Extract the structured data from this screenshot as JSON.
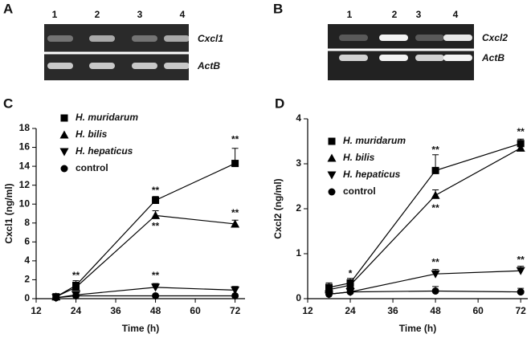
{
  "gels": [
    {
      "panel": "A",
      "lanes": [
        "1",
        "2",
        "3",
        "4"
      ],
      "genes": [
        "Cxcl1",
        "ActB"
      ]
    },
    {
      "panel": "B",
      "lanes": [
        "1",
        "2",
        "3",
        "4"
      ],
      "genes": [
        "Cxcl2",
        "ActB"
      ]
    }
  ],
  "chart_data": [
    {
      "type": "line",
      "panel": "C",
      "xlabel": "Time (h)",
      "ylabel": "Cxcl1 (ng/ml)",
      "x": [
        18,
        24,
        48,
        72
      ],
      "xlim": [
        12,
        75
      ],
      "xticks": [
        12,
        24,
        36,
        48,
        60,
        72
      ],
      "ylim": [
        0,
        18
      ],
      "yticks": [
        0,
        2,
        4,
        6,
        8,
        10,
        12,
        14,
        16,
        18
      ],
      "legend": "top-left",
      "series": [
        {
          "name": "H. muridarum",
          "color": "#000000",
          "marker": "square",
          "italic": true,
          "values": [
            0.2,
            1.4,
            10.4,
            14.3
          ],
          "errors": [
            0.3,
            0.5,
            0.4,
            1.6
          ]
        },
        {
          "name": "H. bilis",
          "color": "#000000",
          "marker": "triangle-up",
          "italic": true,
          "values": [
            0.2,
            1.2,
            8.8,
            7.9
          ],
          "errors": [
            0.2,
            0.4,
            0.5,
            0.4
          ]
        },
        {
          "name": "H. hepaticus",
          "color": "#000000",
          "marker": "triangle-down",
          "italic": true,
          "values": [
            0.1,
            0.4,
            1.2,
            0.9
          ],
          "errors": [
            0.3,
            0.2,
            0.4,
            0.4
          ]
        },
        {
          "name": "control",
          "color": "#000000",
          "marker": "circle",
          "italic": false,
          "values": [
            0.1,
            0.3,
            0.3,
            0.3
          ],
          "errors": [
            0.1,
            0.1,
            0.1,
            0.1
          ]
        }
      ],
      "annotations": [
        {
          "text": "**",
          "x": 24,
          "y": 2.4
        },
        {
          "text": "**",
          "x": 48,
          "y": 11.4
        },
        {
          "text": "**",
          "x": 48,
          "y": 7.6
        },
        {
          "text": "**",
          "x": 72,
          "y": 16.8
        },
        {
          "text": "**",
          "x": 72,
          "y": 9.0
        },
        {
          "text": "**",
          "x": 48,
          "y": 2.4
        }
      ]
    },
    {
      "type": "line",
      "panel": "D",
      "xlabel": "Time (h)",
      "ylabel": "Cxcl2 (ng/ml)",
      "x": [
        18,
        24,
        48,
        72
      ],
      "xlim": [
        12,
        74
      ],
      "xticks": [
        12,
        24,
        36,
        48,
        60,
        72
      ],
      "ylim": [
        0,
        4
      ],
      "yticks": [
        0,
        1,
        2,
        3,
        4
      ],
      "legend": "top-left",
      "series": [
        {
          "name": "H. muridarum",
          "color": "#000000",
          "marker": "square",
          "italic": true,
          "values": [
            0.25,
            0.35,
            2.85,
            3.45
          ],
          "errors": [
            0.1,
            0.1,
            0.35,
            0.1
          ]
        },
        {
          "name": "H. bilis",
          "color": "#000000",
          "marker": "triangle-up",
          "italic": true,
          "values": [
            0.2,
            0.3,
            2.3,
            3.35
          ],
          "errors": [
            0.05,
            0.05,
            0.12,
            0.05
          ]
        },
        {
          "name": "H. hepaticus",
          "color": "#000000",
          "marker": "triangle-down",
          "italic": true,
          "values": [
            0.1,
            0.15,
            0.55,
            0.62
          ],
          "errors": [
            0.05,
            0.1,
            0.1,
            0.1
          ]
        },
        {
          "name": "control",
          "color": "#000000",
          "marker": "circle",
          "italic": false,
          "values": [
            0.1,
            0.15,
            0.17,
            0.15
          ],
          "errors": [
            0.05,
            0.05,
            0.1,
            0.08
          ]
        }
      ],
      "annotations": [
        {
          "text": "*",
          "x": 24,
          "y": 0.55
        },
        {
          "text": "**",
          "x": 48,
          "y": 3.3
        },
        {
          "text": "**",
          "x": 48,
          "y": 2.0
        },
        {
          "text": "**",
          "x": 72,
          "y": 3.7
        },
        {
          "text": "**",
          "x": 48,
          "y": 0.8
        },
        {
          "text": "**",
          "x": 72,
          "y": 0.85
        }
      ]
    }
  ]
}
